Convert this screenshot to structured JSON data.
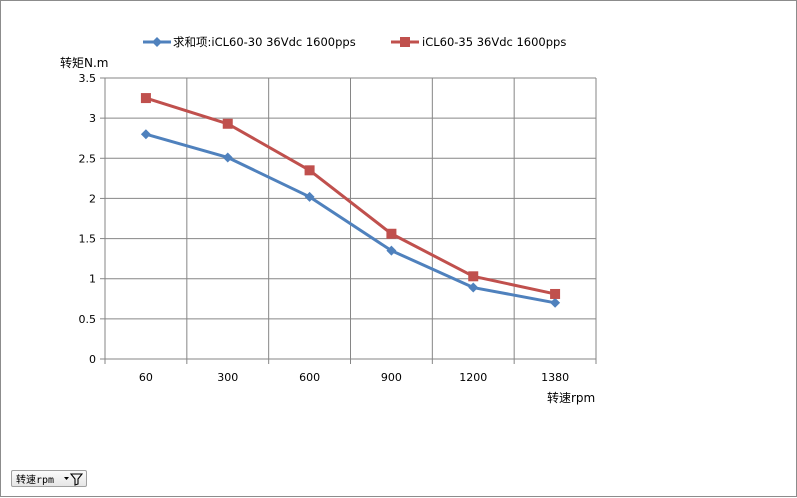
{
  "chart_data": {
    "type": "line",
    "categories": [
      "60",
      "300",
      "600",
      "900",
      "1200",
      "1380"
    ],
    "series": [
      {
        "name": "求和项:iCL60-30 36Vdc 1600pps",
        "color": "#4f81bd",
        "marker": "diamond",
        "values": [
          2.8,
          2.51,
          2.02,
          1.35,
          0.89,
          0.7
        ]
      },
      {
        "name": "iCL60-35 36Vdc 1600pps",
        "color": "#c0504d",
        "marker": "square",
        "values": [
          3.25,
          2.93,
          2.35,
          1.56,
          1.03,
          0.81
        ]
      }
    ],
    "yticks": [
      "0",
      "0.5",
      "1",
      "1.5",
      "2",
      "2.5",
      "3",
      "3.5"
    ],
    "ylim": [
      0,
      3.5
    ],
    "ylabel": "转矩N.m",
    "xlabel": "转速rpm",
    "grid": true,
    "legend_position": "top"
  },
  "field_button": {
    "label": "转速rpm",
    "icon": "filter-dropdown-icon"
  },
  "colors": {
    "gridline": "#868686",
    "axis": "#868686"
  }
}
